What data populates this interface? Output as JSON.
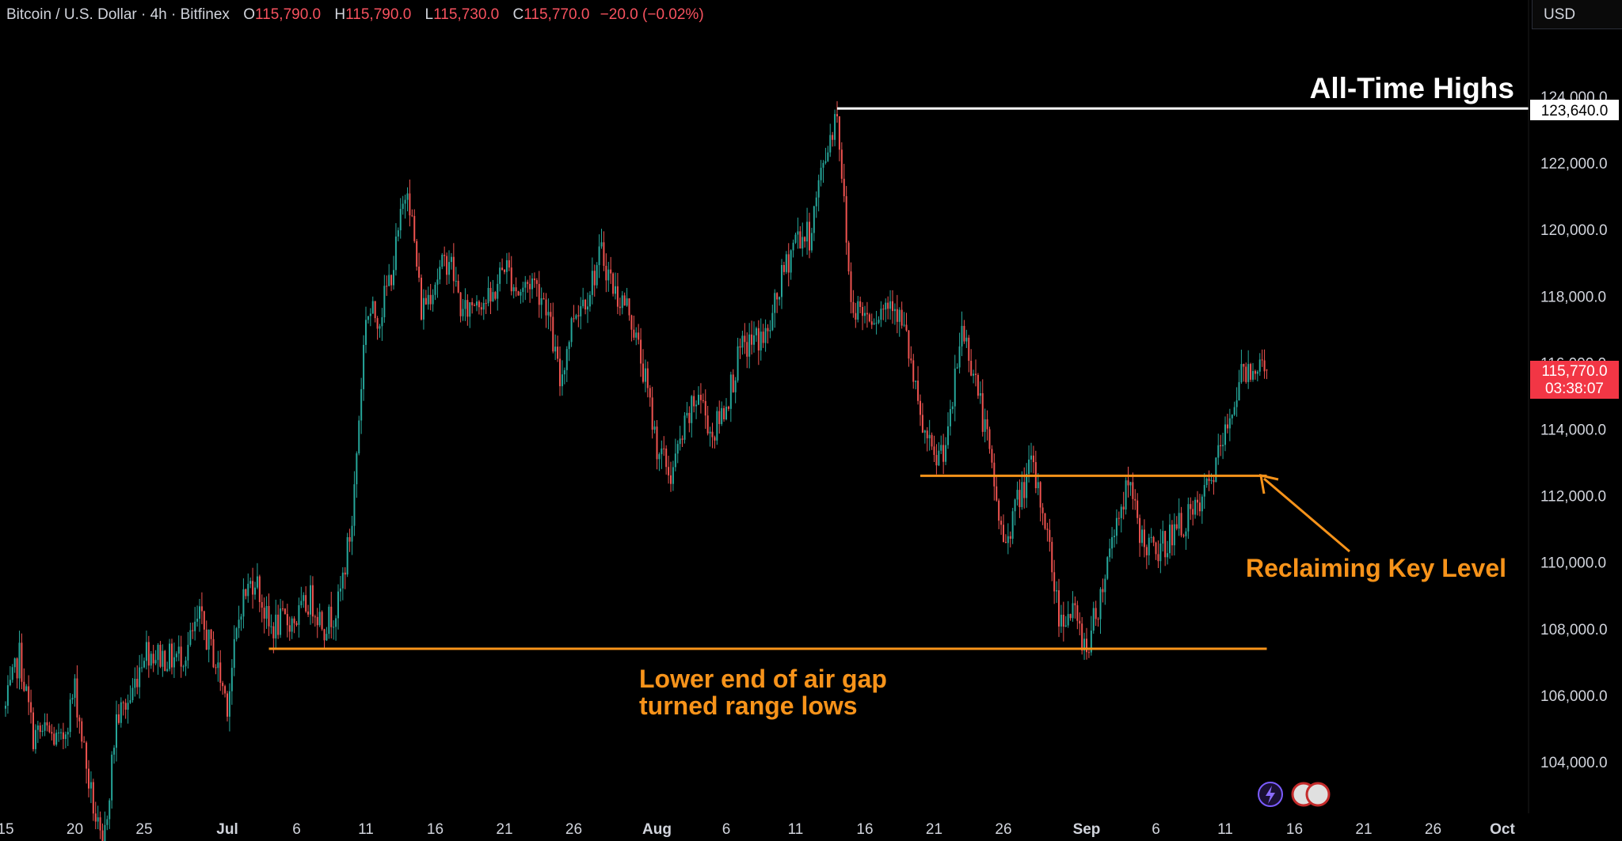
{
  "header": {
    "symbol": "Bitcoin / U.S. Dollar · 4h · Bitfinex",
    "open_label": "O",
    "open": "115,790.0",
    "high_label": "H",
    "high": "115,790.0",
    "low_label": "L",
    "low": "115,730.0",
    "close_label": "C",
    "close": "115,770.0",
    "change": "−20.0 (−0.02%)"
  },
  "currency_button": "USD",
  "colors": {
    "up": "#26a69a",
    "down": "#ef5350",
    "annotation": "#f7931a",
    "ath": "#ffffff",
    "price_badge": "#f23645"
  },
  "chart_data": {
    "type": "candlestick",
    "timeframe": "4h",
    "x_axis": {
      "start": "2025-06-15",
      "end": "2025-10-01",
      "tick_labels": [
        "15",
        "20",
        "25",
        "Jul",
        "6",
        "11",
        "16",
        "21",
        "26",
        "Aug",
        "6",
        "11",
        "16",
        "21",
        "26",
        "Sep",
        "6",
        "11",
        "16",
        "21",
        "26",
        "Oct"
      ]
    },
    "y_axis": {
      "range": [
        103000,
        125200
      ],
      "tick_values": [
        104000,
        106000,
        108000,
        110000,
        112000,
        114000,
        116000,
        118000,
        120000,
        122000,
        124000
      ],
      "tick_labels": [
        "104,000.0",
        "106,000.0",
        "108,000.0",
        "110,000.0",
        "112,000.0",
        "114,000.0",
        "116,000.0",
        "118,000.0",
        "120,000.0",
        "122,000.0",
        "124,000.0"
      ]
    },
    "price_path": [
      [
        "2025-06-15",
        105600
      ],
      [
        "2025-06-16",
        107200
      ],
      [
        "2025-06-17",
        104800
      ],
      [
        "2025-06-18",
        104900
      ],
      [
        "2025-06-19",
        104500
      ],
      [
        "2025-06-20",
        106200
      ],
      [
        "2025-06-21",
        103400
      ],
      [
        "2025-06-22",
        101200
      ],
      [
        "2025-06-23",
        105300
      ],
      [
        "2025-06-24",
        105900
      ],
      [
        "2025-06-25",
        107400
      ],
      [
        "2025-06-26",
        107200
      ],
      [
        "2025-06-27",
        107100
      ],
      [
        "2025-06-28",
        107300
      ],
      [
        "2025-06-29",
        108300
      ],
      [
        "2025-06-30",
        107200
      ],
      [
        "2025-07-01",
        105800
      ],
      [
        "2025-07-02",
        108800
      ],
      [
        "2025-07-03",
        109600
      ],
      [
        "2025-07-04",
        108000
      ],
      [
        "2025-07-05",
        108200
      ],
      [
        "2025-07-06",
        108300
      ],
      [
        "2025-07-07",
        108900
      ],
      [
        "2025-07-08",
        108100
      ],
      [
        "2025-07-09",
        108700
      ],
      [
        "2025-07-10",
        111200
      ],
      [
        "2025-07-11",
        117500
      ],
      [
        "2025-07-12",
        117400
      ],
      [
        "2025-07-13",
        119000
      ],
      [
        "2025-07-14",
        121500
      ],
      [
        "2025-07-15",
        117600
      ],
      [
        "2025-07-16",
        118500
      ],
      [
        "2025-07-17",
        119200
      ],
      [
        "2025-07-18",
        117400
      ],
      [
        "2025-07-19",
        118000
      ],
      [
        "2025-07-20",
        117800
      ],
      [
        "2025-07-21",
        119000
      ],
      [
        "2025-07-22",
        118100
      ],
      [
        "2025-07-23",
        118500
      ],
      [
        "2025-07-24",
        117800
      ],
      [
        "2025-07-25",
        115400
      ],
      [
        "2025-07-26",
        117500
      ],
      [
        "2025-07-27",
        118100
      ],
      [
        "2025-07-28",
        119300
      ],
      [
        "2025-07-29",
        118100
      ],
      [
        "2025-07-30",
        117600
      ],
      [
        "2025-07-31",
        115800
      ],
      [
        "2025-08-01",
        113500
      ],
      [
        "2025-08-02",
        112600
      ],
      [
        "2025-08-03",
        114000
      ],
      [
        "2025-08-04",
        115100
      ],
      [
        "2025-08-05",
        113800
      ],
      [
        "2025-08-06",
        114800
      ],
      [
        "2025-08-07",
        116300
      ],
      [
        "2025-08-08",
        116700
      ],
      [
        "2025-08-09",
        116800
      ],
      [
        "2025-08-10",
        118500
      ],
      [
        "2025-08-11",
        119800
      ],
      [
        "2025-08-12",
        119800
      ],
      [
        "2025-08-13",
        122000
      ],
      [
        "2025-08-14",
        123640
      ],
      [
        "2025-08-15",
        117800
      ],
      [
        "2025-08-16",
        117500
      ],
      [
        "2025-08-17",
        117500
      ],
      [
        "2025-08-18",
        118000
      ],
      [
        "2025-08-19",
        116700
      ],
      [
        "2025-08-20",
        114200
      ],
      [
        "2025-08-21",
        113000
      ],
      [
        "2025-08-22",
        113700
      ],
      [
        "2025-08-23",
        117100
      ],
      [
        "2025-08-24",
        115500
      ],
      [
        "2025-08-25",
        113200
      ],
      [
        "2025-08-26",
        110500
      ],
      [
        "2025-08-27",
        111800
      ],
      [
        "2025-08-28",
        112900
      ],
      [
        "2025-08-29",
        111300
      ],
      [
        "2025-08-30",
        108400
      ],
      [
        "2025-08-31",
        108500
      ],
      [
        "2025-09-01",
        107400
      ],
      [
        "2025-09-02",
        109000
      ],
      [
        "2025-09-03",
        111100
      ],
      [
        "2025-09-04",
        112300
      ],
      [
        "2025-09-05",
        110700
      ],
      [
        "2025-09-06",
        110200
      ],
      [
        "2025-09-07",
        110800
      ],
      [
        "2025-09-08",
        111200
      ],
      [
        "2025-09-09",
        111500
      ],
      [
        "2025-09-10",
        112500
      ],
      [
        "2025-09-11",
        113800
      ],
      [
        "2025-09-12",
        115500
      ],
      [
        "2025-09-13",
        116000
      ],
      [
        "2025-09-14",
        115770
      ]
    ],
    "levels": [
      {
        "id": "ath",
        "price": 123640,
        "from": "2025-08-14",
        "to": "2025-10-05"
      },
      {
        "id": "key-level",
        "price": 112600,
        "from": "2025-08-20",
        "to": "2025-09-14"
      },
      {
        "id": "range-lows",
        "price": 107400,
        "from": "2025-07-04",
        "to": "2025-09-14"
      }
    ],
    "annotations": {
      "ath_label": "All-Time Highs",
      "key_level_label": "Reclaiming Key Level",
      "range_label_line1": "Lower end of air gap",
      "range_label_line2": "turned range lows"
    },
    "price_badges": {
      "ath_value": "123,640.0",
      "last_price": "115,770.0",
      "countdown": "03:38:07"
    }
  }
}
